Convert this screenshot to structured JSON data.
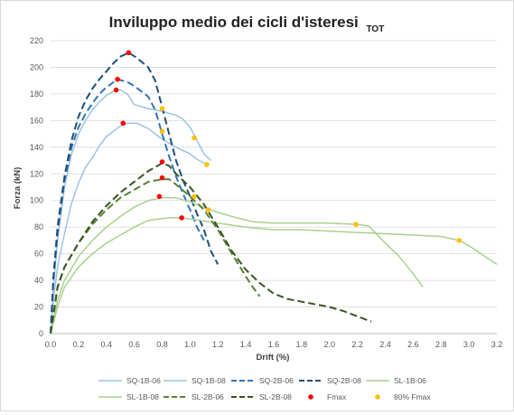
{
  "chart_data": {
    "type": "line",
    "title": "Inviluppo medio dei cicli d'isteresi",
    "title_subscript": "TOT",
    "xlabel": "Drift (%)",
    "ylabel": "Forza (kN)",
    "xlim": [
      0,
      3.2
    ],
    "ylim": [
      0,
      220
    ],
    "x_ticks": [
      "0.0",
      "0.2",
      "0.4",
      "0.6",
      "0.8",
      "1.0",
      "1.2",
      "1.4",
      "1.6",
      "1.8",
      "2.0",
      "2.2",
      "2.4",
      "2.6",
      "2.8",
      "3.0",
      "3.2"
    ],
    "y_ticks": [
      "0",
      "20",
      "40",
      "60",
      "80",
      "100",
      "120",
      "140",
      "160",
      "180",
      "200",
      "220"
    ],
    "grid": "horizontal",
    "legend_position": "bottom",
    "colors": {
      "sq_light": "#9dc3e6",
      "sq_dark": "#1f4e79",
      "sl_light": "#a9d18e",
      "sl_dark": "#375623",
      "fmax": "#ff0000",
      "f80": "#ffc000"
    },
    "series": [
      {
        "name": "SQ-1B-06",
        "color": "#9dc3e6",
        "dash": false,
        "points": [
          [
            0,
            0
          ],
          [
            0.02,
            25
          ],
          [
            0.05,
            50
          ],
          [
            0.1,
            75
          ],
          [
            0.15,
            98
          ],
          [
            0.2,
            113
          ],
          [
            0.25,
            125
          ],
          [
            0.3,
            132
          ],
          [
            0.35,
            141
          ],
          [
            0.4,
            148
          ],
          [
            0.5,
            156
          ],
          [
            0.55,
            158
          ],
          [
            0.62,
            158
          ],
          [
            0.7,
            154
          ],
          [
            0.8,
            146
          ],
          [
            0.9,
            140
          ],
          [
            1.0,
            135
          ],
          [
            1.05,
            131
          ],
          [
            1.12,
            127
          ]
        ]
      },
      {
        "name": "SQ-1B-08",
        "color": "#9dc3e6",
        "dash": false,
        "points": [
          [
            0,
            0
          ],
          [
            0.02,
            35
          ],
          [
            0.05,
            70
          ],
          [
            0.1,
            110
          ],
          [
            0.15,
            135
          ],
          [
            0.2,
            150
          ],
          [
            0.25,
            160
          ],
          [
            0.3,
            168
          ],
          [
            0.35,
            174
          ],
          [
            0.4,
            179
          ],
          [
            0.45,
            182
          ],
          [
            0.5,
            183
          ],
          [
            0.55,
            180
          ],
          [
            0.6,
            172
          ],
          [
            0.7,
            169
          ],
          [
            0.8,
            167
          ],
          [
            0.9,
            164
          ],
          [
            0.95,
            161
          ],
          [
            1.0,
            155
          ],
          [
            1.05,
            145
          ],
          [
            1.1,
            135
          ],
          [
            1.15,
            130
          ]
        ]
      },
      {
        "name": "SQ-2B-06",
        "color": "#2e75b6",
        "dash": true,
        "points": [
          [
            0,
            0
          ],
          [
            0.02,
            40
          ],
          [
            0.05,
            75
          ],
          [
            0.1,
            115
          ],
          [
            0.15,
            140
          ],
          [
            0.2,
            155
          ],
          [
            0.25,
            165
          ],
          [
            0.3,
            173
          ],
          [
            0.35,
            180
          ],
          [
            0.4,
            185
          ],
          [
            0.48,
            191
          ],
          [
            0.55,
            189
          ],
          [
            0.6,
            186
          ],
          [
            0.7,
            178
          ],
          [
            0.75,
            168
          ],
          [
            0.8,
            150
          ],
          [
            0.85,
            133
          ],
          [
            0.9,
            118
          ],
          [
            0.95,
            105
          ],
          [
            1.0,
            93
          ],
          [
            1.05,
            80
          ],
          [
            1.1,
            70
          ]
        ]
      },
      {
        "name": "SQ-2B-08",
        "color": "#1f4e79",
        "dash": true,
        "points": [
          [
            0,
            0
          ],
          [
            0.02,
            42
          ],
          [
            0.05,
            80
          ],
          [
            0.1,
            118
          ],
          [
            0.15,
            145
          ],
          [
            0.2,
            163
          ],
          [
            0.25,
            175
          ],
          [
            0.3,
            184
          ],
          [
            0.35,
            191
          ],
          [
            0.4,
            197
          ],
          [
            0.45,
            203
          ],
          [
            0.5,
            208
          ],
          [
            0.56,
            211
          ],
          [
            0.62,
            207
          ],
          [
            0.7,
            200
          ],
          [
            0.75,
            190
          ],
          [
            0.8,
            170
          ],
          [
            0.85,
            150
          ],
          [
            0.9,
            130
          ],
          [
            0.95,
            115
          ],
          [
            1.0,
            103
          ],
          [
            1.05,
            90
          ],
          [
            1.1,
            78
          ],
          [
            1.15,
            62
          ],
          [
            1.2,
            52
          ]
        ]
      },
      {
        "name": "SL-1B-06",
        "color": "#a9d18e",
        "dash": false,
        "points": [
          [
            0,
            0
          ],
          [
            0.05,
            20
          ],
          [
            0.1,
            35
          ],
          [
            0.2,
            50
          ],
          [
            0.3,
            60
          ],
          [
            0.4,
            68
          ],
          [
            0.5,
            74
          ],
          [
            0.6,
            80
          ],
          [
            0.7,
            85
          ],
          [
            0.85,
            87
          ],
          [
            0.93,
            87
          ],
          [
            1.0,
            86
          ],
          [
            1.2,
            83
          ],
          [
            1.4,
            80
          ],
          [
            1.6,
            78
          ],
          [
            1.8,
            78
          ],
          [
            2.0,
            77
          ],
          [
            2.2,
            76
          ],
          [
            2.4,
            75
          ],
          [
            2.6,
            74
          ],
          [
            2.8,
            73
          ],
          [
            2.93,
            70
          ],
          [
            3.0,
            66
          ],
          [
            3.1,
            59
          ],
          [
            3.2,
            52
          ]
        ]
      },
      {
        "name": "SL-1B-08",
        "color": "#a9d18e",
        "dash": false,
        "points": [
          [
            0,
            0
          ],
          [
            0.05,
            25
          ],
          [
            0.1,
            40
          ],
          [
            0.2,
            58
          ],
          [
            0.3,
            70
          ],
          [
            0.4,
            80
          ],
          [
            0.5,
            88
          ],
          [
            0.6,
            95
          ],
          [
            0.7,
            100
          ],
          [
            0.8,
            102
          ],
          [
            0.9,
            102
          ],
          [
            1.0,
            99
          ],
          [
            1.1,
            95
          ],
          [
            1.2,
            91
          ],
          [
            1.3,
            88
          ],
          [
            1.45,
            84
          ],
          [
            1.6,
            83
          ],
          [
            1.8,
            83
          ],
          [
            2.0,
            83
          ],
          [
            2.2,
            82
          ],
          [
            2.28,
            81
          ],
          [
            2.4,
            68
          ],
          [
            2.5,
            58
          ],
          [
            2.6,
            45
          ],
          [
            2.67,
            35
          ]
        ]
      },
      {
        "name": "SL-2B-06",
        "color": "#548235",
        "dash": true,
        "points": [
          [
            0,
            0
          ],
          [
            0.05,
            35
          ],
          [
            0.1,
            50
          ],
          [
            0.2,
            68
          ],
          [
            0.3,
            82
          ],
          [
            0.4,
            93
          ],
          [
            0.5,
            102
          ],
          [
            0.6,
            108
          ],
          [
            0.7,
            114
          ],
          [
            0.8,
            116
          ],
          [
            0.85,
            116
          ],
          [
            0.9,
            112
          ],
          [
            1.0,
            103
          ],
          [
            1.1,
            93
          ],
          [
            1.2,
            78
          ],
          [
            1.3,
            60
          ],
          [
            1.4,
            43
          ],
          [
            1.45,
            35
          ],
          [
            1.5,
            28
          ]
        ]
      },
      {
        "name": "SL-2B-08",
        "color": "#375623",
        "dash": true,
        "points": [
          [
            0,
            0
          ],
          [
            0.05,
            35
          ],
          [
            0.1,
            50
          ],
          [
            0.2,
            68
          ],
          [
            0.3,
            84
          ],
          [
            0.4,
            96
          ],
          [
            0.5,
            106
          ],
          [
            0.6,
            114
          ],
          [
            0.7,
            122
          ],
          [
            0.8,
            128
          ],
          [
            0.85,
            126
          ],
          [
            0.9,
            120
          ],
          [
            1.0,
            110
          ],
          [
            1.1,
            97
          ],
          [
            1.2,
            80
          ],
          [
            1.3,
            62
          ],
          [
            1.4,
            48
          ],
          [
            1.5,
            38
          ],
          [
            1.6,
            30
          ],
          [
            1.7,
            26
          ],
          [
            1.8,
            24
          ],
          [
            1.9,
            22
          ],
          [
            2.0,
            20
          ],
          [
            2.1,
            17
          ],
          [
            2.2,
            13
          ],
          [
            2.3,
            9
          ]
        ]
      }
    ],
    "markers": [
      {
        "name": "Fmax",
        "color": "#ff0000",
        "points": [
          [
            0.56,
            211
          ],
          [
            0.48,
            191
          ],
          [
            0.47,
            183
          ],
          [
            0.52,
            158
          ],
          [
            0.8,
            129
          ],
          [
            0.8,
            117
          ],
          [
            0.78,
            103
          ],
          [
            0.94,
            87
          ]
        ]
      },
      {
        "name": "80% Fmax",
        "color": "#ffc000",
        "points": [
          [
            0.8,
            169
          ],
          [
            0.8,
            152
          ],
          [
            1.03,
            147
          ],
          [
            1.12,
            127
          ],
          [
            1.03,
            103
          ],
          [
            1.13,
            93
          ],
          [
            2.19,
            82
          ],
          [
            2.93,
            70
          ]
        ]
      }
    ]
  }
}
